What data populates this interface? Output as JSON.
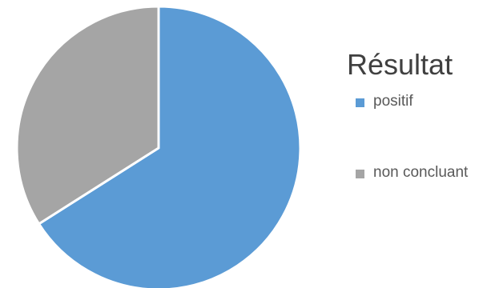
{
  "chart_data": {
    "type": "pie",
    "title": "Résultat",
    "slices": [
      {
        "label": "positif",
        "value": 66,
        "color": "#5B9BD5"
      },
      {
        "label": "non concluant",
        "value": 34,
        "color": "#A5A5A5"
      }
    ],
    "legend_position": "right"
  }
}
